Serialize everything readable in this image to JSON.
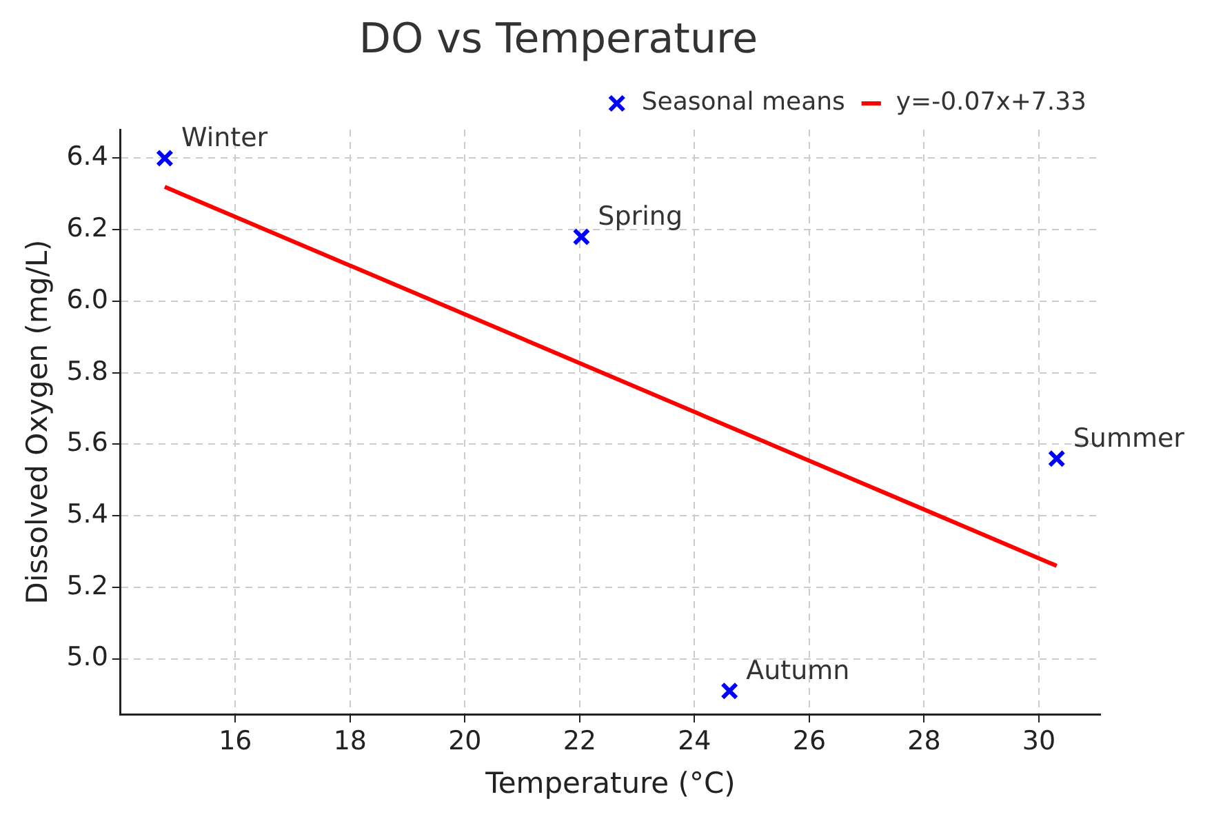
{
  "chart_data": {
    "type": "scatter",
    "title": "DO vs Temperature",
    "xlabel": "Temperature (°C)",
    "ylabel": "Dissolved Oxygen (mg/L)",
    "series": [
      {
        "name": "Seasonal means",
        "type": "scatter",
        "color": "#0000ff",
        "marker": "cross",
        "x": [
          14.77,
          22.03,
          24.61,
          30.31
        ],
        "values": [
          6.4,
          6.18,
          4.91,
          5.56
        ]
      },
      {
        "name": "y=-0.07x+7.33",
        "type": "line",
        "color": "#ff0000",
        "marker": "none",
        "line_style": "solid",
        "x": [
          14.77,
          30.31
        ],
        "values": [
          6.32,
          5.26
        ]
      }
    ],
    "annotations": [
      {
        "text": "Winter",
        "x": 14.77,
        "y": 6.4
      },
      {
        "text": "Spring",
        "x": 22.03,
        "y": 6.18
      },
      {
        "text": "Autumn",
        "x": 24.61,
        "y": 4.91
      },
      {
        "text": "Summer",
        "x": 30.31,
        "y": 5.56
      }
    ],
    "xlim": [
      14.0,
      31.07
    ],
    "xticks": [
      16,
      18,
      20,
      22,
      24,
      26,
      28,
      30
    ],
    "ylim": [
      4.845,
      6.48
    ],
    "yticks": [
      {
        "value": 5.0,
        "label": "5.0"
      },
      {
        "value": 5.2,
        "label": "5.2"
      },
      {
        "value": 5.4,
        "label": "5.4"
      },
      {
        "value": 5.6,
        "label": "5.6"
      },
      {
        "value": 5.8,
        "label": "5.8"
      },
      {
        "value": 6.0,
        "label": "6.0"
      },
      {
        "value": 6.2,
        "label": "6.2"
      },
      {
        "value": 6.4,
        "label": "6.4"
      }
    ],
    "grid": true,
    "legend": "top right"
  }
}
